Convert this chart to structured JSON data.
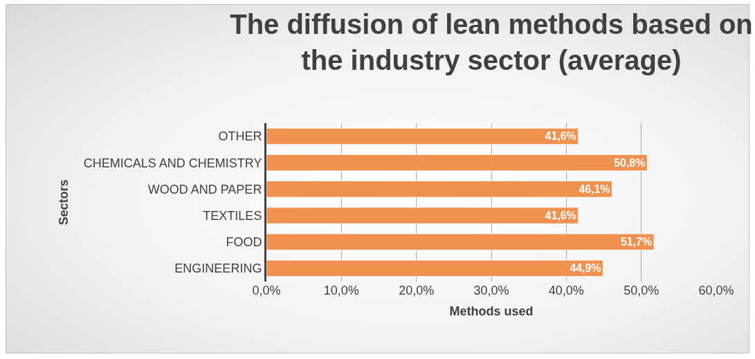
{
  "chart_data": {
    "type": "bar",
    "orientation": "horizontal",
    "title": "The diffusion of lean methods based on\nthe industry sector (average)",
    "xlabel": "Methods used",
    "ylabel": "Sectors",
    "categories": [
      "OTHER",
      "CHEMICALS AND CHEMISTRY",
      "WOOD AND PAPER",
      "TEXTILES",
      "FOOD",
      "ENGINEERING"
    ],
    "values": [
      41.6,
      50.8,
      46.1,
      41.6,
      51.7,
      44.9
    ],
    "value_labels": [
      "41,6%",
      "50,8%",
      "46,1%",
      "41,6%",
      "51,7%",
      "44,9%"
    ],
    "color": "#f0914f",
    "xlim": [
      0,
      60
    ],
    "xticks": [
      {
        "value": 0,
        "label": "0,0%"
      },
      {
        "value": 10,
        "label": "10,0%"
      },
      {
        "value": 20,
        "label": "20,0%"
      },
      {
        "value": 30,
        "label": "30,0%"
      },
      {
        "value": 40,
        "label": "40,0%"
      },
      {
        "value": 50,
        "label": "50,0%"
      },
      {
        "value": 60,
        "label": "60,0%"
      }
    ],
    "grid": "x"
  }
}
